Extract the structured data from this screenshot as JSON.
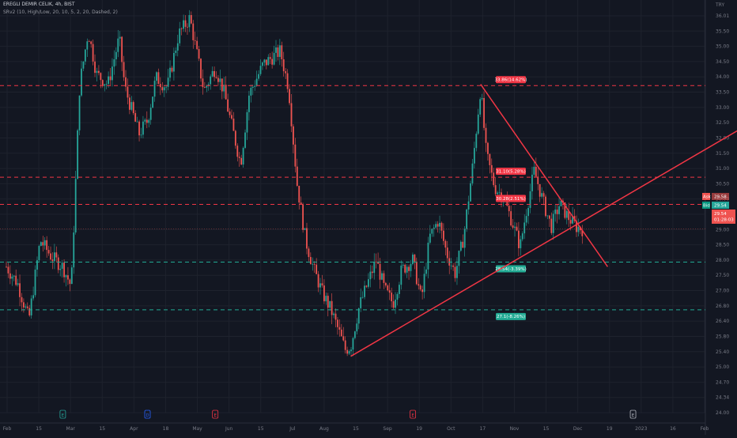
{
  "header": {
    "title": "EREGLI DEMIR CELIK, 4h, BIST",
    "indicator": "SRv2 (10, High/Low, 20, 10, 5, 2, 20, Dashed, 2)"
  },
  "currency": "TRY",
  "colors": {
    "background": "#131722",
    "up": "#26a69a",
    "down": "#ef5350",
    "resistance": "#f23645",
    "support": "#22ab94",
    "trendline": "#f23645"
  },
  "event_markers": [
    {
      "label": "E",
      "color": "#26a69a",
      "x": 2.0
    },
    {
      "label": "D",
      "color": "#2962ff",
      "x": 5.0
    },
    {
      "label": "E",
      "color": "#f23645",
      "x": 7.4
    },
    {
      "label": "E",
      "color": "#f23645",
      "x": 14.4
    },
    {
      "label": "E",
      "color": "#b2b5be",
      "x": 22.2
    }
  ],
  "badges": {
    "ask_label": "Ask",
    "ask_value": "29.58",
    "bid_label": "Bid",
    "bid_value": "29.54",
    "last_price": "29.54",
    "last_extra": "01:28:03"
  },
  "chart_data": {
    "type": "candlestick",
    "title": "EREGLI DEMIR CELIK, 4h, BIST",
    "y_axis_ticks": [
      "36.01",
      "35.50",
      "35.00",
      "34.50",
      "34.00",
      "33.50",
      "33.00",
      "32.50",
      "32.00",
      "31.50",
      "31.00",
      "30.50",
      "30.00",
      "29.50",
      "29.00",
      "28.50",
      "28.00",
      "27.50",
      "27.00",
      "26.80",
      "26.40",
      "25.80",
      "25.40",
      "25.00",
      "24.70",
      "24.34",
      "24.00"
    ],
    "x_axis_ticks": [
      "Feb",
      "15",
      "Mar",
      "15",
      "Apr",
      "18",
      "May",
      "Jun",
      "15",
      "Jul",
      "Aug",
      "15",
      "Sep",
      "19",
      "Oct",
      "17",
      "Nov",
      "15",
      "Dec",
      "19",
      "2023",
      "16",
      "Feb"
    ],
    "levels": [
      {
        "label": "33.86(14.62%)",
        "price": 33.86,
        "kind": "resistance"
      },
      {
        "label": "31.10(5.28%)",
        "price": 31.1,
        "kind": "resistance"
      },
      {
        "label": "30.28(2.51%)",
        "price": 30.28,
        "kind": "resistance"
      },
      {
        "label": "28.54(-3.39%)",
        "price": 28.54,
        "kind": "support"
      },
      {
        "label": "27.1(-8.26%)",
        "price": 27.1,
        "kind": "support"
      }
    ],
    "trendlines": [
      {
        "name": "descending",
        "from": {
          "x": 16.8,
          "y": 33.9
        },
        "to": {
          "x": 21.3,
          "y": 28.4
        }
      },
      {
        "name": "ascending",
        "from": {
          "x": 12.2,
          "y": 25.7
        },
        "to": {
          "x": 26.3,
          "y": 32.7
        }
      }
    ],
    "price_path": [
      [
        0.0,
        28.4
      ],
      [
        0.4,
        27.9
      ],
      [
        0.8,
        26.8
      ],
      [
        1.2,
        29.2
      ],
      [
        1.6,
        28.7
      ],
      [
        2.0,
        28.4
      ],
      [
        2.3,
        27.8
      ],
      [
        2.6,
        33.9
      ],
      [
        2.9,
        35.5
      ],
      [
        3.2,
        34.2
      ],
      [
        3.6,
        33.9
      ],
      [
        4.0,
        35.3
      ],
      [
        4.2,
        33.8
      ],
      [
        4.7,
        32.4
      ],
      [
        5.0,
        32.8
      ],
      [
        5.3,
        34.1
      ],
      [
        5.7,
        33.8
      ],
      [
        6.1,
        35.4
      ],
      [
        6.5,
        35.9
      ],
      [
        6.8,
        34.6
      ],
      [
        7.0,
        33.7
      ],
      [
        7.4,
        34.4
      ],
      [
        7.7,
        33.7
      ],
      [
        8.0,
        32.6
      ],
      [
        8.3,
        31.5
      ],
      [
        8.6,
        33.6
      ],
      [
        9.1,
        34.5
      ],
      [
        9.7,
        34.9
      ],
      [
        10.0,
        33.8
      ],
      [
        10.3,
        30.9
      ],
      [
        10.6,
        29.2
      ],
      [
        10.9,
        28.3
      ],
      [
        11.2,
        27.6
      ],
      [
        11.5,
        27.1
      ],
      [
        11.8,
        26.4
      ],
      [
        12.0,
        25.9
      ],
      [
        12.2,
        26.0
      ],
      [
        12.5,
        27.2
      ],
      [
        12.8,
        27.9
      ],
      [
        13.1,
        28.6
      ],
      [
        13.4,
        27.7
      ],
      [
        13.7,
        27.3
      ],
      [
        14.0,
        28.3
      ],
      [
        14.4,
        28.6
      ],
      [
        14.7,
        27.4
      ],
      [
        15.0,
        29.3
      ],
      [
        15.3,
        29.8
      ],
      [
        15.6,
        28.8
      ],
      [
        15.9,
        28.2
      ],
      [
        16.2,
        29.3
      ],
      [
        16.5,
        31.3
      ],
      [
        16.8,
        33.8
      ],
      [
        17.0,
        31.8
      ],
      [
        17.3,
        30.8
      ],
      [
        17.6,
        30.5
      ],
      [
        17.9,
        29.8
      ],
      [
        18.2,
        29.0
      ],
      [
        18.4,
        30.0
      ],
      [
        18.7,
        31.3
      ],
      [
        19.0,
        30.4
      ],
      [
        19.3,
        29.6
      ],
      [
        19.6,
        30.3
      ],
      [
        19.9,
        29.9
      ],
      [
        20.2,
        29.6
      ],
      [
        20.4,
        29.54
      ]
    ]
  }
}
